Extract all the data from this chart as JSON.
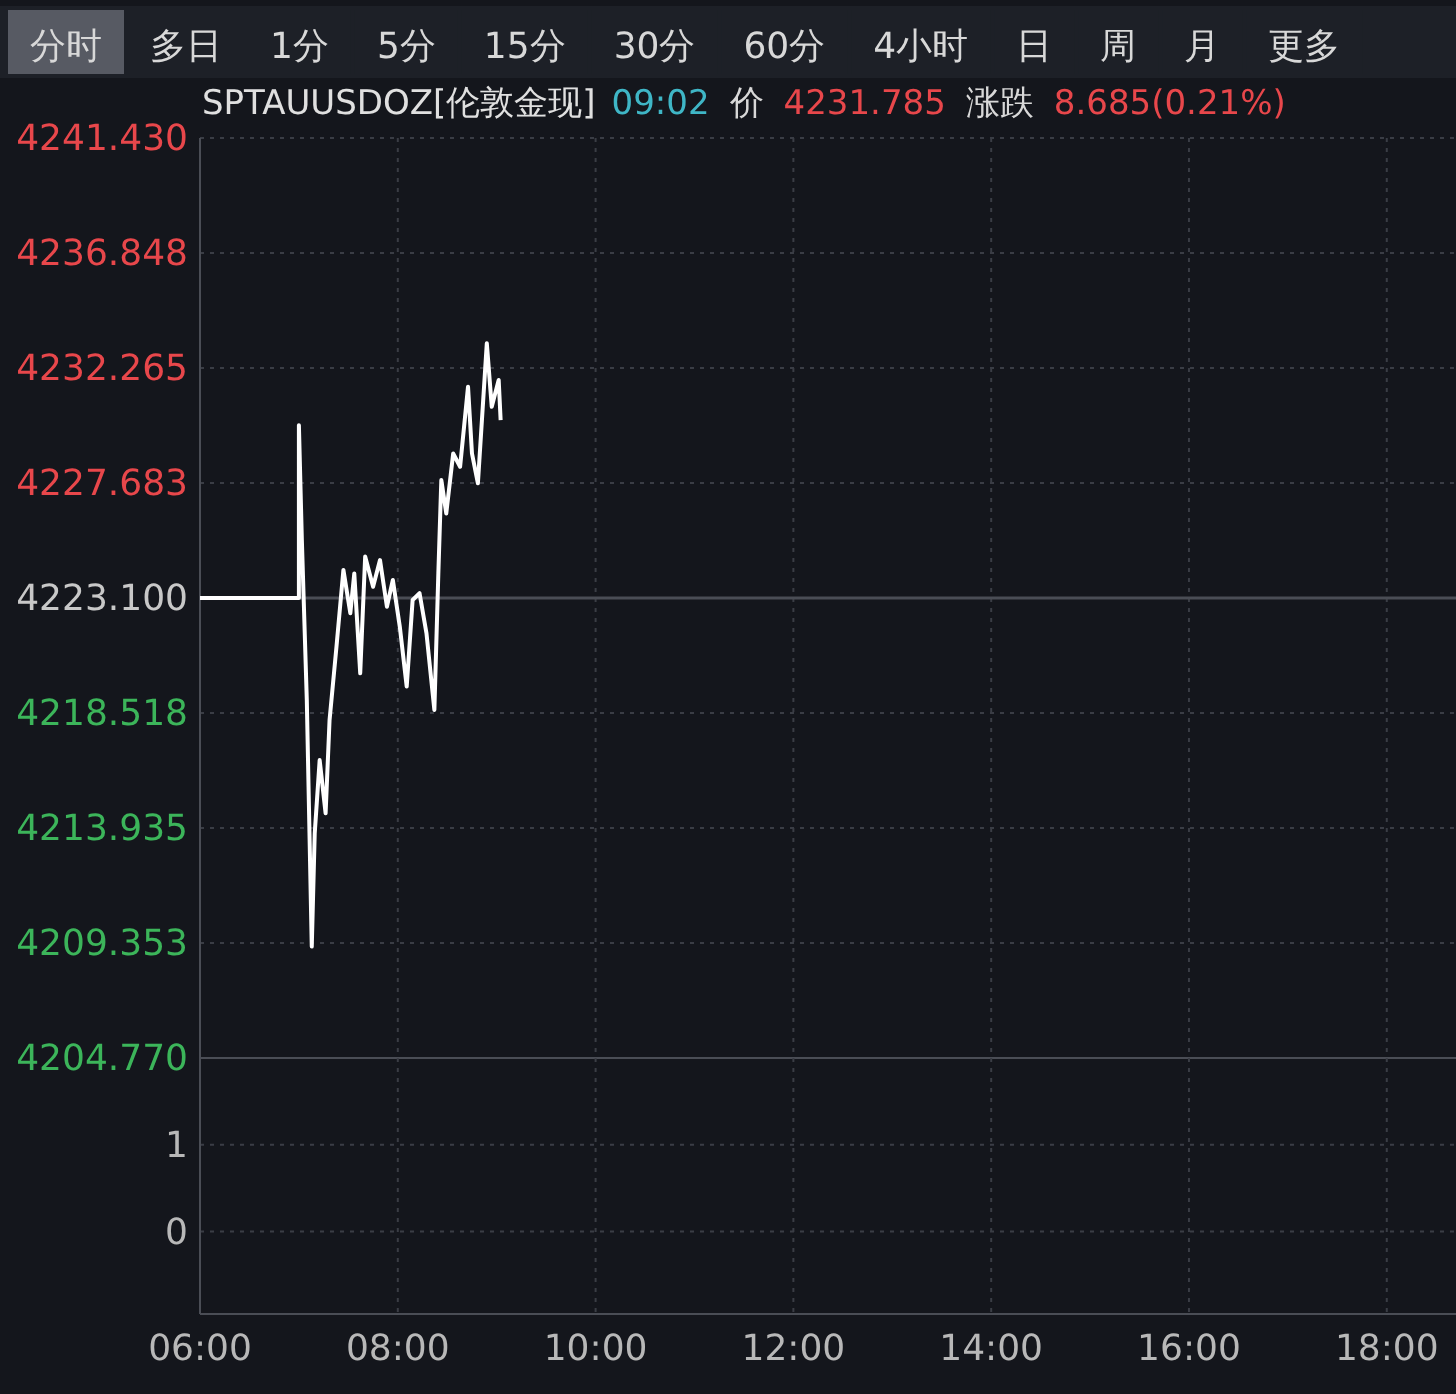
{
  "chart_data": [
    {
      "type": "line",
      "title": "SPTAUUSDOZ[伦敦金现]",
      "annotations": [
        "分时",
        "多日",
        "1分",
        "5分",
        "15分",
        "30分",
        "60分",
        "4小时",
        "日",
        "周",
        "月",
        "更多",
        "09:02",
        "价",
        "4231.785",
        "涨跌",
        "8.685(0.21%)"
      ],
      "series": [
        {
          "color": "#ffffff",
          "x": [
            6.0,
            7.0,
            7.0,
            7.03,
            7.08,
            7.13,
            7.16,
            7.21,
            7.27,
            7.31,
            7.38,
            7.45,
            7.52,
            7.56,
            7.62,
            7.67,
            7.75,
            7.82,
            7.89,
            7.95,
            8.02,
            8.09,
            8.15,
            8.22,
            8.29,
            8.37,
            8.41,
            8.44,
            8.49,
            8.56,
            8.63,
            8.71,
            8.75,
            8.81,
            8.9,
            8.95,
            9.02,
            9.04
          ],
          "values": [
            4223.1,
            4223.1,
            4229.98,
            4225.41,
            4219.04,
            4209.21,
            4213.72,
            4216.64,
            4214.52,
            4218.24,
            4221.16,
            4224.22,
            4222.49,
            4224.08,
            4220.1,
            4224.75,
            4223.55,
            4224.61,
            4222.75,
            4223.82,
            4221.96,
            4219.57,
            4223.02,
            4223.29,
            4221.69,
            4218.64,
            4224.08,
            4227.8,
            4226.47,
            4228.86,
            4228.33,
            4231.52,
            4228.86,
            4227.67,
            4233.25,
            4230.72,
            4231.79,
            4230.19
          ]
        }
      ],
      "xlim": [
        6,
        18.7
      ],
      "ylim": [
        4204.77,
        4241.43
      ],
      "xticks": [
        6,
        8,
        10,
        12,
        14,
        16,
        18
      ],
      "yticks": [
        {
          "value": 4204.77,
          "label": "4204.770"
        },
        {
          "value": 4209.353,
          "label": "4209.353"
        },
        {
          "value": 4213.935,
          "label": "4213.935"
        },
        {
          "value": 4218.518,
          "label": "4218.518"
        },
        {
          "value": 4223.1,
          "label": "4223.100"
        },
        {
          "value": 4227.683,
          "label": "4227.683"
        },
        {
          "value": 4232.265,
          "label": "4232.265"
        },
        {
          "value": 4236.848,
          "label": "4236.848"
        },
        {
          "value": 4241.43,
          "label": "4241.430"
        }
      ],
      "ref_lines": [
        {
          "axis": "y",
          "value": 4223.1,
          "color": "#4a4d55"
        }
      ],
      "grid": true,
      "tick_labels": "y"
    },
    {
      "type": "bar",
      "xlim": [
        6,
        18.7
      ],
      "ylim": [
        -0.95,
        2
      ],
      "xticks": [
        {
          "value": 6,
          "label": "06:00"
        },
        {
          "value": 8,
          "label": "08:00"
        },
        {
          "value": 10,
          "label": "10:00"
        },
        {
          "value": 12,
          "label": "12:00"
        },
        {
          "value": 14,
          "label": "14:00"
        },
        {
          "value": 16,
          "label": "16:00"
        },
        {
          "value": 18,
          "label": "18:00"
        }
      ],
      "yticks": [
        0,
        1
      ],
      "grid": true
    }
  ]
}
